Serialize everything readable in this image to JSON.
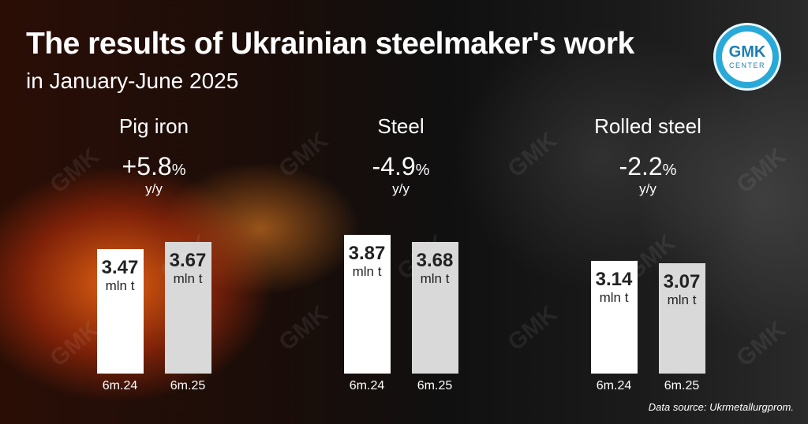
{
  "header": {
    "title": "The results of Ukrainian steelmaker's work",
    "subtitle": "in January-June 2025"
  },
  "logo": {
    "main": "GMK",
    "sub": "CENTER",
    "color": "#29a9d8"
  },
  "watermark_text": "GMK",
  "source": "Data source: Ukrmetallurgprom.",
  "colors": {
    "bar_2024": "#ffffff",
    "bar_2025": "#d9d9d9",
    "text_dark": "#222222"
  },
  "chart_data": [
    {
      "type": "bar",
      "title": "Pig iron",
      "change": "+5.8",
      "change_unit": "%",
      "change_basis": "y/y",
      "categories": [
        "6m.24",
        "6m.25"
      ],
      "values": [
        3.47,
        3.67
      ],
      "value_labels": [
        "3.47",
        "3.67"
      ],
      "unit": "mln t"
    },
    {
      "type": "bar",
      "title": "Steel",
      "change": "-4.9",
      "change_unit": "%",
      "change_basis": "y/y",
      "categories": [
        "6m.24",
        "6m.25"
      ],
      "values": [
        3.87,
        3.68
      ],
      "value_labels": [
        "3.87",
        "3.68"
      ],
      "unit": "mln t"
    },
    {
      "type": "bar",
      "title": "Rolled steel",
      "change": "-2.2",
      "change_unit": "%",
      "change_basis": "y/y",
      "categories": [
        "6m.24",
        "6m.25"
      ],
      "values": [
        3.14,
        3.07
      ],
      "value_labels": [
        "3.14",
        "3.07"
      ],
      "unit": "mln t"
    }
  ]
}
